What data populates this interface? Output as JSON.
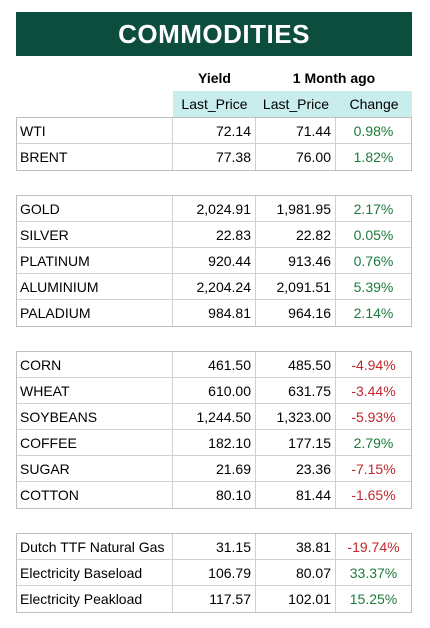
{
  "title": "COMMODITIES",
  "headers": {
    "yield": "Yield",
    "month_ago": "1 Month ago"
  },
  "columns": {
    "last_price": "Last_Price",
    "last_price_prev": "Last_Price",
    "change": "Change"
  },
  "colors": {
    "title_bg": "#0d4d3e",
    "subheader_bg": "#c9ecec",
    "positive": "#1e7a3c",
    "negative": "#c0282d"
  },
  "groups": [
    {
      "rows": [
        {
          "name": "WTI",
          "last": "72.14",
          "prev": "71.44",
          "change": "0.98%",
          "dir": "pos"
        },
        {
          "name": "BRENT",
          "last": "77.38",
          "prev": "76.00",
          "change": "1.82%",
          "dir": "pos"
        }
      ]
    },
    {
      "rows": [
        {
          "name": "GOLD",
          "last": "2,024.91",
          "prev": "1,981.95",
          "change": "2.17%",
          "dir": "pos"
        },
        {
          "name": "SILVER",
          "last": "22.83",
          "prev": "22.82",
          "change": "0.05%",
          "dir": "pos"
        },
        {
          "name": "PLATINUM",
          "last": "920.44",
          "prev": "913.46",
          "change": "0.76%",
          "dir": "pos"
        },
        {
          "name": "ALUMINIUM",
          "last": "2,204.24",
          "prev": "2,091.51",
          "change": "5.39%",
          "dir": "pos"
        },
        {
          "name": "PALADIUM",
          "last": "984.81",
          "prev": "964.16",
          "change": "2.14%",
          "dir": "pos"
        }
      ]
    },
    {
      "rows": [
        {
          "name": "CORN",
          "last": "461.50",
          "prev": "485.50",
          "change": "-4.94%",
          "dir": "neg"
        },
        {
          "name": "WHEAT",
          "last": "610.00",
          "prev": "631.75",
          "change": "-3.44%",
          "dir": "neg"
        },
        {
          "name": "SOYBEANS",
          "last": "1,244.50",
          "prev": "1,323.00",
          "change": "-5.93%",
          "dir": "neg"
        },
        {
          "name": "COFFEE",
          "last": "182.10",
          "prev": "177.15",
          "change": "2.79%",
          "dir": "pos"
        },
        {
          "name": "SUGAR",
          "last": "21.69",
          "prev": "23.36",
          "change": "-7.15%",
          "dir": "neg"
        },
        {
          "name": "COTTON",
          "last": "80.10",
          "prev": "81.44",
          "change": "-1.65%",
          "dir": "neg"
        }
      ]
    },
    {
      "rows": [
        {
          "name": "Dutch TTF Natural Gas",
          "last": "31.15",
          "prev": "38.81",
          "change": "-19.74%",
          "dir": "neg"
        },
        {
          "name": "Electricity Baseload",
          "last": "106.79",
          "prev": "80.07",
          "change": "33.37%",
          "dir": "pos"
        },
        {
          "name": "Electricity Peakload",
          "last": "117.57",
          "prev": "102.01",
          "change": "15.25%",
          "dir": "pos"
        }
      ]
    }
  ]
}
